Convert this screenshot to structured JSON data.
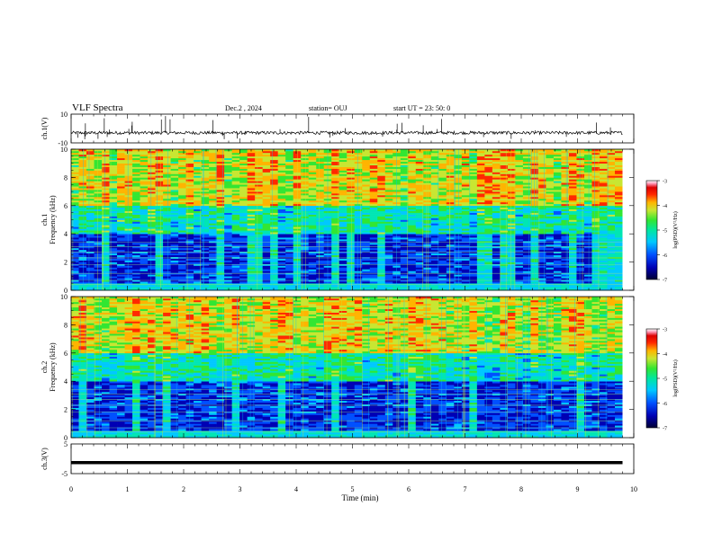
{
  "header": {
    "title": "VLF Spectra",
    "date": "Dec.2  , 2024",
    "station": "station= OUJ",
    "start": "start  UT  =   23: 50: 0"
  },
  "chart_data": [
    {
      "type": "line",
      "panel": "ch1-waveform",
      "ylabel": "ch.1(V)",
      "ylim": [
        -10,
        10
      ],
      "ytick_labels": [
        "10",
        "-10"
      ],
      "x_range_min": [
        0,
        9.8
      ],
      "baseline_value": -3,
      "spike_max_value": 10,
      "grid": false
    },
    {
      "type": "heatmap",
      "panel": "ch1-spectrogram",
      "ylabel": "ch.1\nFrequency (kHz)",
      "ylim": [
        0,
        10
      ],
      "ytick_labels": [
        "0",
        "2",
        "4",
        "6",
        "8",
        "10"
      ],
      "x_range_min": [
        0,
        9.8
      ],
      "colorbar": {
        "label": "log(PSD)(V²/Hz)",
        "range": [
          -7,
          -3
        ],
        "tick_labels": [
          "-7",
          "-6",
          "-5",
          "-4",
          "-3"
        ]
      }
    },
    {
      "type": "heatmap",
      "panel": "ch2-spectrogram",
      "ylabel": "ch.2\nFrequency (kHz)",
      "ylim": [
        0,
        10
      ],
      "ytick_labels": [
        "0",
        "2",
        "4",
        "6",
        "8",
        "10"
      ],
      "x_range_min": [
        0,
        9.8
      ],
      "colorbar": {
        "label": "log(PSD)(V²/Hz)",
        "range": [
          -7,
          -3
        ],
        "tick_labels": [
          "-7",
          "-6",
          "-5",
          "-4",
          "-3"
        ]
      }
    },
    {
      "type": "line",
      "panel": "ch3-waveform",
      "ylabel": "ch.3(V)",
      "ylim": [
        -5,
        5
      ],
      "ytick_labels": [
        "5",
        "-5"
      ],
      "x_range_min": [
        0,
        9.8
      ],
      "constant_value": -1.3,
      "grid": false
    }
  ],
  "xaxis": {
    "label": "Time  (min)",
    "range": [
      0,
      10
    ],
    "tick_labels": [
      "0",
      "1",
      "2",
      "3",
      "4",
      "5",
      "6",
      "7",
      "8",
      "9",
      "10"
    ]
  },
  "colors": {
    "colormap": [
      "#00003c",
      "#0000b4",
      "#0050ff",
      "#00c8ff",
      "#00e6b4",
      "#32e632",
      "#c8e632",
      "#ffb400",
      "#ff2800",
      "#dc0000",
      "#ff96b4",
      "#ffffff"
    ]
  }
}
